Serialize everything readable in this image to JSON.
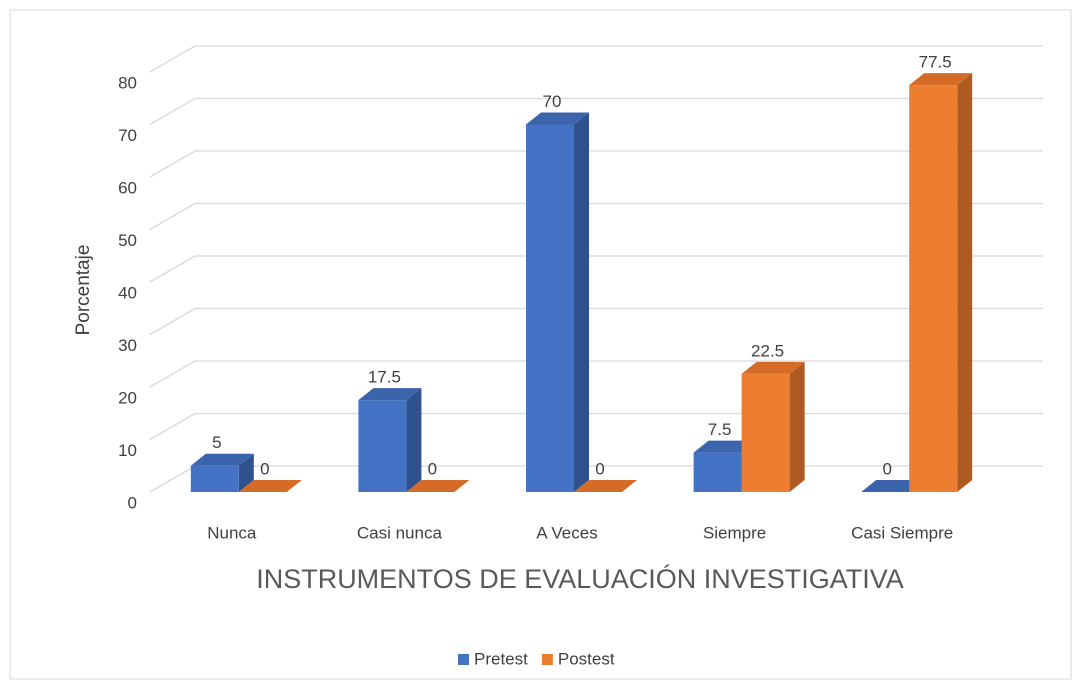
{
  "chart_data": {
    "type": "bar3d",
    "x_label": "INSTRUMENTOS DE EVALUACIÓN INVESTIGATIVA",
    "y_label": "Porcentaje",
    "categories": [
      "Nunca",
      "Casi nunca",
      "A Veces",
      "Siempre",
      "Casi Siempre"
    ],
    "series": [
      {
        "name": "Pretest",
        "color": "#4472c4",
        "side": "#2f528f",
        "top": "#3b64ad",
        "values": [
          5,
          17.5,
          70,
          7.5,
          0
        ]
      },
      {
        "name": "Postest",
        "color": "#ed7d31",
        "side": "#ae5a21",
        "top": "#d46c27",
        "values": [
          0,
          0,
          0,
          22.5,
          77.5
        ]
      }
    ],
    "ylim": [
      0,
      80
    ],
    "yticks": [
      0,
      10,
      20,
      30,
      40,
      50,
      60,
      70,
      80
    ],
    "grid": true,
    "legend": "bottom"
  }
}
